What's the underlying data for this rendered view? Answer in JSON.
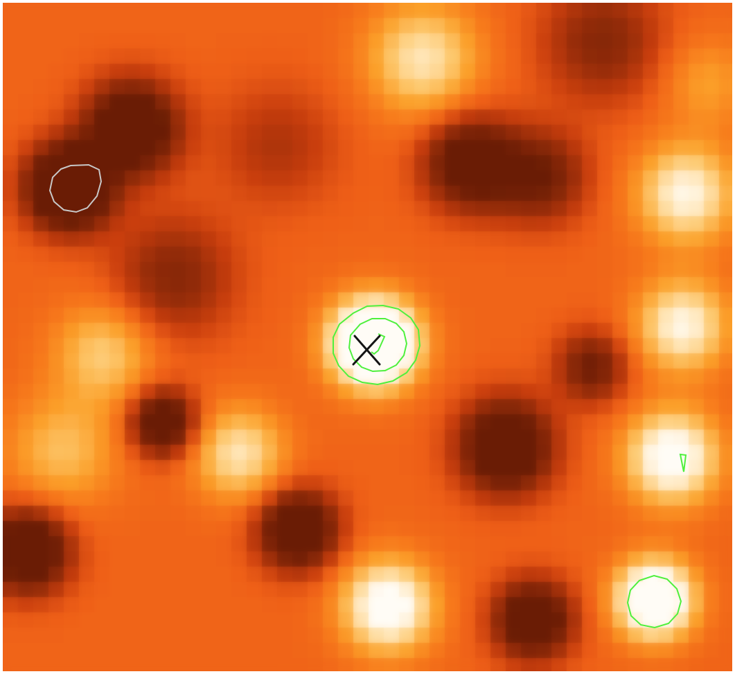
{
  "image": {
    "kind": "false-color intensity map",
    "colormap": "orange-heat",
    "colors": {
      "dark": "#6a1d06",
      "deep": "#b8380c",
      "mid": "#f56b1a",
      "bright": "#fba52a",
      "glow": "#ffd9a0",
      "peak": "#fffaf0",
      "green_contour": "#4ef03c",
      "gray_contour": "#c8c8c8",
      "marker": "#141414"
    }
  },
  "overlays": {
    "green_contours": 5,
    "gray_contours": 1,
    "cross_markers": 1
  }
}
